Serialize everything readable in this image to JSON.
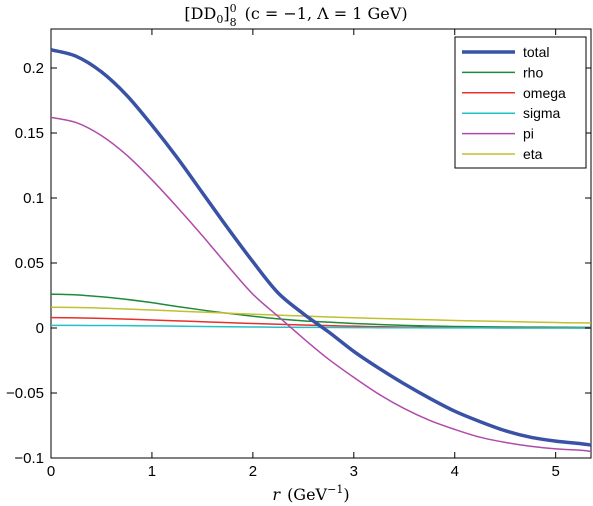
{
  "chart_data": {
    "type": "line",
    "title": "[DD₀]₀⁸ (c = −1, Λ = 1 GeV)",
    "title_parts": {
      "base": "[DD",
      "sub_d": "0",
      "bracket_close": "]",
      "superscript": "0",
      "subscript": "8",
      "rest": "(c = −1, Λ = 1 GeV)"
    },
    "xlabel": "r (GeV⁻¹)",
    "xlabel_parts": {
      "var": "r",
      "unit": "(GeV",
      "exp": "−1",
      "close": ")"
    },
    "ylabel": "",
    "xlim": [
      0,
      5.35
    ],
    "ylim": [
      -0.1,
      0.23
    ],
    "xticks": [
      0,
      1,
      2,
      3,
      4,
      5
    ],
    "xtick_labels": [
      "0",
      "1",
      "2",
      "3",
      "4",
      "5"
    ],
    "yticks": [
      -0.1,
      -0.05,
      0,
      0.05,
      0.1,
      0.15,
      0.2
    ],
    "ytick_labels": [
      "−0.1",
      "−0.05",
      "0",
      "0.05",
      "0.1",
      "0.15",
      "0.2"
    ],
    "grid": false,
    "legend_position": "top-right",
    "x": [
      0,
      0.25,
      0.5,
      0.75,
      1,
      1.25,
      1.5,
      1.75,
      2,
      2.25,
      2.5,
      2.75,
      3,
      3.25,
      3.5,
      3.75,
      4,
      4.25,
      4.5,
      4.75,
      5,
      5.25,
      5.35
    ],
    "series": [
      {
        "name": "total",
        "color": "#3a52a6",
        "width": 3.5,
        "values": [
          0.214,
          0.209,
          0.197,
          0.179,
          0.156,
          0.131,
          0.104,
          0.077,
          0.051,
          0.027,
          0.011,
          -0.003,
          -0.018,
          -0.031,
          -0.043,
          -0.054,
          -0.064,
          -0.072,
          -0.079,
          -0.084,
          -0.087,
          -0.089,
          -0.09
        ]
      },
      {
        "name": "rho",
        "color": "#1e8a3a",
        "width": 1.5,
        "values": [
          0.026,
          0.0255,
          0.024,
          0.022,
          0.0195,
          0.0165,
          0.0138,
          0.0113,
          0.009,
          0.007,
          0.0055,
          0.0045,
          0.0035,
          0.0027,
          0.002,
          0.0015,
          0.0012,
          0.001,
          0.0008,
          0.0007,
          0.0006,
          0.0005,
          0.0005
        ]
      },
      {
        "name": "omega",
        "color": "#e8302a",
        "width": 1.5,
        "values": [
          0.008,
          0.0078,
          0.0074,
          0.0068,
          0.0062,
          0.0055,
          0.0048,
          0.0041,
          0.0035,
          0.0029,
          0.0023,
          0.0018,
          0.0014,
          0.001,
          0.0007,
          0.0005,
          0.0003,
          0.0002,
          0.0001,
          0.0001,
          0.0001,
          0.0,
          0.0
        ]
      },
      {
        "name": "sigma",
        "color": "#22c1c8",
        "width": 1.5,
        "values": [
          0.002,
          0.002,
          0.0019,
          0.0018,
          0.0016,
          0.0014,
          0.0012,
          0.001,
          0.0008,
          0.0006,
          0.0005,
          0.0004,
          0.0003,
          0.0002,
          0.0002,
          0.0001,
          0.0001,
          0.0001,
          0.0,
          0.0,
          0.0,
          0.0,
          0.0
        ]
      },
      {
        "name": "pi",
        "color": "#b04aaa",
        "width": 1.5,
        "values": [
          0.162,
          0.158,
          0.148,
          0.133,
          0.114,
          0.093,
          0.071,
          0.048,
          0.026,
          0.009,
          -0.008,
          -0.024,
          -0.038,
          -0.051,
          -0.062,
          -0.071,
          -0.078,
          -0.084,
          -0.088,
          -0.091,
          -0.093,
          -0.094,
          -0.095
        ]
      },
      {
        "name": "eta",
        "color": "#c0c030",
        "width": 1.5,
        "values": [
          0.016,
          0.0158,
          0.0153,
          0.0146,
          0.0138,
          0.013,
          0.0122,
          0.0114,
          0.0106,
          0.0099,
          0.0092,
          0.0085,
          0.0079,
          0.0073,
          0.0068,
          0.0063,
          0.0058,
          0.0054,
          0.005,
          0.0046,
          0.0042,
          0.0039,
          0.0038
        ]
      }
    ]
  }
}
